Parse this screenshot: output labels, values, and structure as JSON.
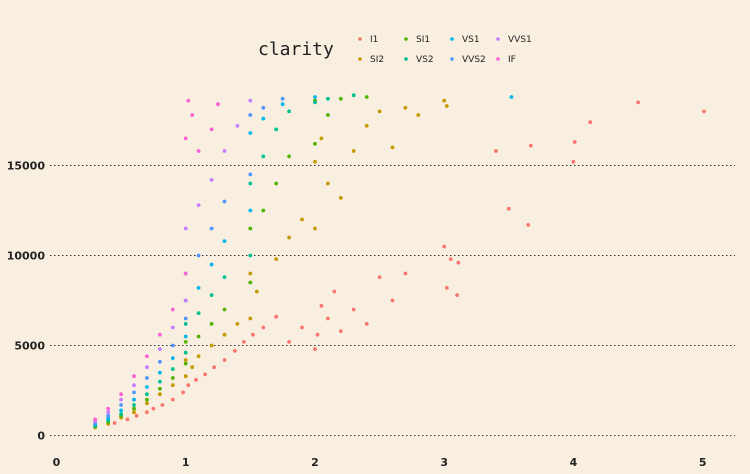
{
  "chart_data": {
    "type": "scatter",
    "title": "",
    "xlabel": "",
    "ylabel": "",
    "xlim": [
      -0.05,
      5.25
    ],
    "ylim": [
      -800,
      19300
    ],
    "x_ticks": [
      0,
      1,
      2,
      3,
      4,
      5
    ],
    "y_ticks": [
      0,
      5000,
      10000,
      15000
    ],
    "grid": "horizontal dotted",
    "legend": {
      "title": "clarity",
      "placement": "top",
      "entries": [
        "I1",
        "SI2",
        "SI1",
        "VS2",
        "VS1",
        "VVS2",
        "VVS1",
        "IF"
      ]
    },
    "series": [
      {
        "name": "I1",
        "color": "#f8766d",
        "points": [
          [
            0.3,
            500
          ],
          [
            0.45,
            700
          ],
          [
            0.55,
            900
          ],
          [
            0.62,
            1100
          ],
          [
            0.7,
            1300
          ],
          [
            0.75,
            1500
          ],
          [
            0.82,
            1700
          ],
          [
            0.9,
            2000
          ],
          [
            0.98,
            2400
          ],
          [
            1.02,
            2800
          ],
          [
            1.08,
            3100
          ],
          [
            1.15,
            3400
          ],
          [
            1.22,
            3800
          ],
          [
            1.3,
            4200
          ],
          [
            1.38,
            4700
          ],
          [
            1.45,
            5200
          ],
          [
            1.52,
            5600
          ],
          [
            1.6,
            6000
          ],
          [
            1.7,
            6600
          ],
          [
            1.8,
            5200
          ],
          [
            1.9,
            6000
          ],
          [
            2.0,
            4800
          ],
          [
            2.02,
            5600
          ],
          [
            2.05,
            7200
          ],
          [
            2.1,
            6500
          ],
          [
            2.15,
            8000
          ],
          [
            2.2,
            5800
          ],
          [
            2.3,
            7000
          ],
          [
            2.4,
            6200
          ],
          [
            2.5,
            8800
          ],
          [
            2.6,
            7500
          ],
          [
            2.7,
            9000
          ],
          [
            3.0,
            10500
          ],
          [
            3.02,
            8200
          ],
          [
            3.05,
            9800
          ],
          [
            3.1,
            7800
          ],
          [
            3.11,
            9600
          ],
          [
            3.4,
            15800
          ],
          [
            3.5,
            12600
          ],
          [
            3.65,
            11700
          ],
          [
            3.67,
            16100
          ],
          [
            4.0,
            15200
          ],
          [
            4.01,
            16300
          ],
          [
            4.13,
            17400
          ],
          [
            4.5,
            18500
          ],
          [
            5.01,
            18000
          ]
        ]
      },
      {
        "name": "SI2",
        "color": "#c49a00",
        "points": [
          [
            0.3,
            450
          ],
          [
            0.4,
            650
          ],
          [
            0.5,
            1000
          ],
          [
            0.6,
            1300
          ],
          [
            0.7,
            1800
          ],
          [
            0.8,
            2300
          ],
          [
            0.9,
            2800
          ],
          [
            1.0,
            3300
          ],
          [
            1.0,
            4200
          ],
          [
            1.05,
            3800
          ],
          [
            1.1,
            4400
          ],
          [
            1.2,
            5000
          ],
          [
            1.3,
            5600
          ],
          [
            1.4,
            6200
          ],
          [
            1.5,
            6500
          ],
          [
            1.5,
            9000
          ],
          [
            1.55,
            8000
          ],
          [
            1.7,
            9800
          ],
          [
            1.8,
            11000
          ],
          [
            1.9,
            12000
          ],
          [
            2.0,
            11500
          ],
          [
            2.0,
            15200
          ],
          [
            2.05,
            16500
          ],
          [
            2.1,
            14000
          ],
          [
            2.2,
            13200
          ],
          [
            2.3,
            15800
          ],
          [
            2.4,
            17200
          ],
          [
            2.5,
            18000
          ],
          [
            2.6,
            16000
          ],
          [
            2.7,
            18200
          ],
          [
            2.8,
            17800
          ],
          [
            3.0,
            18600
          ],
          [
            3.02,
            18300
          ]
        ]
      },
      {
        "name": "SI1",
        "color": "#53b400",
        "points": [
          [
            0.3,
            500
          ],
          [
            0.4,
            750
          ],
          [
            0.5,
            1100
          ],
          [
            0.6,
            1500
          ],
          [
            0.7,
            2000
          ],
          [
            0.8,
            2600
          ],
          [
            0.9,
            3200
          ],
          [
            1.0,
            4000
          ],
          [
            1.0,
            5200
          ],
          [
            1.1,
            5500
          ],
          [
            1.2,
            6200
          ],
          [
            1.3,
            7000
          ],
          [
            1.5,
            8500
          ],
          [
            1.5,
            11500
          ],
          [
            1.6,
            12500
          ],
          [
            1.7,
            14000
          ],
          [
            1.8,
            15500
          ],
          [
            2.0,
            16200
          ],
          [
            2.0,
            18600
          ],
          [
            2.1,
            17800
          ],
          [
            2.2,
            18700
          ],
          [
            2.4,
            18800
          ]
        ]
      },
      {
        "name": "VS2",
        "color": "#00c094",
        "points": [
          [
            0.3,
            550
          ],
          [
            0.4,
            850
          ],
          [
            0.5,
            1200
          ],
          [
            0.6,
            1700
          ],
          [
            0.7,
            2300
          ],
          [
            0.8,
            3000
          ],
          [
            0.9,
            3700
          ],
          [
            1.0,
            4600
          ],
          [
            1.0,
            6200
          ],
          [
            1.1,
            6800
          ],
          [
            1.2,
            7800
          ],
          [
            1.3,
            8800
          ],
          [
            1.5,
            10000
          ],
          [
            1.5,
            14000
          ],
          [
            1.6,
            15500
          ],
          [
            1.7,
            17000
          ],
          [
            1.8,
            18000
          ],
          [
            2.0,
            18500
          ],
          [
            2.1,
            18700
          ],
          [
            2.3,
            18900
          ]
        ]
      },
      {
        "name": "VS1",
        "color": "#00b6eb",
        "points": [
          [
            0.3,
            600
          ],
          [
            0.4,
            950
          ],
          [
            0.5,
            1400
          ],
          [
            0.6,
            2000
          ],
          [
            0.7,
            2700
          ],
          [
            0.8,
            3500
          ],
          [
            0.9,
            4300
          ],
          [
            1.0,
            5500
          ],
          [
            1.0,
            7500
          ],
          [
            1.1,
            8200
          ],
          [
            1.2,
            9500
          ],
          [
            1.3,
            10800
          ],
          [
            1.5,
            12500
          ],
          [
            1.5,
            16800
          ],
          [
            1.6,
            17600
          ],
          [
            1.75,
            18400
          ],
          [
            2.0,
            18800
          ],
          [
            3.52,
            18800
          ]
        ]
      },
      {
        "name": "VVS2",
        "color": "#5195ff",
        "points": [
          [
            0.3,
            700
          ],
          [
            0.4,
            1100
          ],
          [
            0.5,
            1700
          ],
          [
            0.6,
            2400
          ],
          [
            0.7,
            3200
          ],
          [
            0.8,
            4100
          ],
          [
            0.9,
            5000
          ],
          [
            1.0,
            6500
          ],
          [
            1.0,
            9000
          ],
          [
            1.1,
            10000
          ],
          [
            1.2,
            11500
          ],
          [
            1.3,
            13000
          ],
          [
            1.5,
            14500
          ],
          [
            1.5,
            17800
          ],
          [
            1.6,
            18200
          ],
          [
            1.75,
            18700
          ]
        ]
      },
      {
        "name": "VVS1",
        "color": "#c77cff",
        "points": [
          [
            0.3,
            800
          ],
          [
            0.4,
            1300
          ],
          [
            0.5,
            2000
          ],
          [
            0.6,
            2800
          ],
          [
            0.7,
            3800
          ],
          [
            0.8,
            4800
          ],
          [
            0.9,
            6000
          ],
          [
            1.0,
            7500
          ],
          [
            1.0,
            11500
          ],
          [
            1.1,
            12800
          ],
          [
            1.2,
            14200
          ],
          [
            1.3,
            15800
          ],
          [
            1.4,
            17200
          ],
          [
            1.5,
            18600
          ]
        ]
      },
      {
        "name": "IF",
        "color": "#fb61d7",
        "points": [
          [
            0.3,
            900
          ],
          [
            0.4,
            1500
          ],
          [
            0.5,
            2300
          ],
          [
            0.6,
            3300
          ],
          [
            0.7,
            4400
          ],
          [
            0.8,
            5600
          ],
          [
            0.9,
            7000
          ],
          [
            1.0,
            9000
          ],
          [
            1.0,
            16500
          ],
          [
            1.02,
            18600
          ],
          [
            1.05,
            17800
          ],
          [
            1.1,
            15800
          ],
          [
            1.2,
            17000
          ],
          [
            1.25,
            18400
          ]
        ]
      }
    ]
  }
}
